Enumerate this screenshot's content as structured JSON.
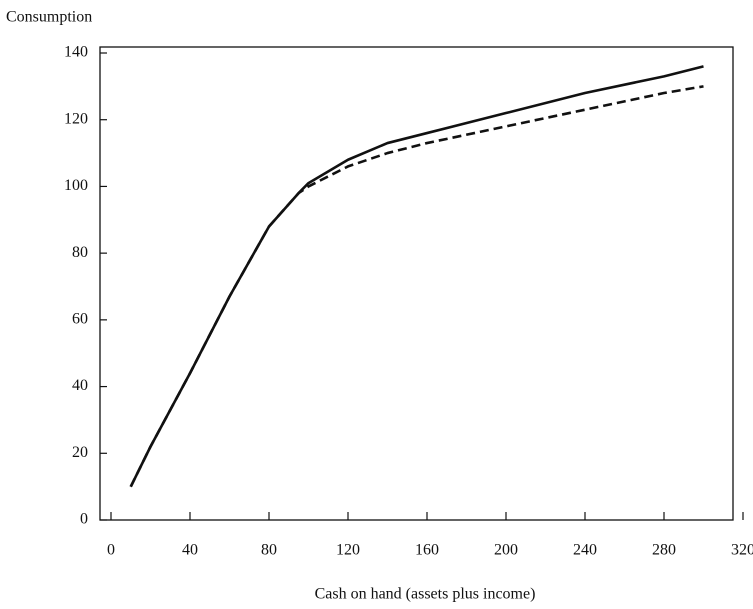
{
  "chart_data": {
    "type": "line",
    "y_label": "Consumption",
    "x_label": "Cash on hand (assets plus income)",
    "xlim": [
      0,
      320
    ],
    "xticks": [
      0,
      40,
      80,
      120,
      160,
      200,
      240,
      280,
      320
    ],
    "ylim": [
      0,
      140
    ],
    "yticks": [
      0,
      20,
      40,
      60,
      80,
      100,
      120,
      140
    ],
    "series": [
      {
        "color": "#111111",
        "dashed": false,
        "x": [
          10,
          20,
          40,
          60,
          80,
          95,
          100,
          120,
          140,
          160,
          200,
          240,
          280,
          300
        ],
        "values": [
          10,
          22,
          44,
          67,
          88,
          98,
          101,
          108,
          113,
          116,
          122,
          128,
          133,
          136
        ]
      },
      {
        "color": "#111111",
        "dashed": true,
        "x": [
          10,
          20,
          40,
          60,
          80,
          95,
          100,
          120,
          140,
          160,
          200,
          240,
          280,
          300
        ],
        "values": [
          10,
          22,
          44,
          67,
          88,
          98,
          100,
          106,
          110,
          113,
          118,
          123,
          128,
          130
        ]
      }
    ]
  }
}
